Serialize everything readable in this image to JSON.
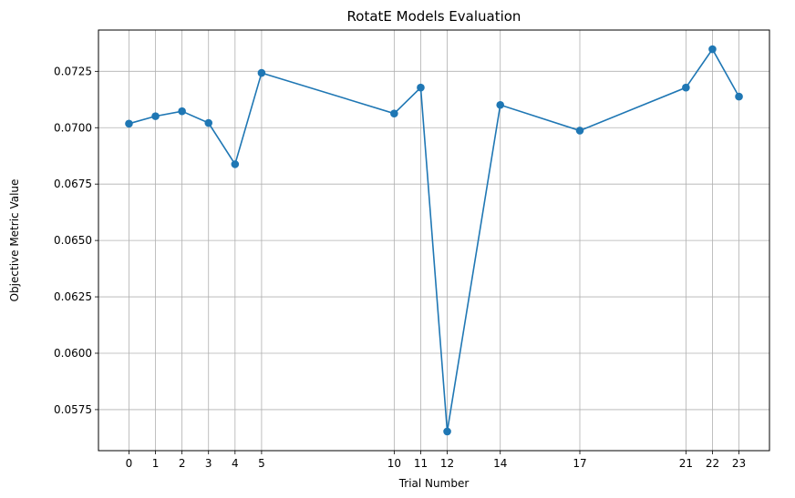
{
  "chart_data": {
    "type": "line",
    "title": "RotatE Models Evaluation",
    "xlabel": "Trial Number",
    "ylabel": "Objective Metric Value",
    "x": [
      0,
      1,
      2,
      3,
      4,
      5,
      10,
      11,
      12,
      14,
      17,
      21,
      22,
      23
    ],
    "y": [
      0.07018,
      0.07051,
      0.07073,
      0.07021,
      0.06838,
      0.07243,
      0.07063,
      0.07178,
      0.05653,
      0.07101,
      0.06987,
      0.07178,
      0.07348,
      0.07138
    ],
    "xticks": [
      0,
      1,
      2,
      3,
      4,
      5,
      10,
      11,
      12,
      14,
      17,
      21,
      22,
      23
    ],
    "yticks": [
      "0.0575",
      "0.0600",
      "0.0625",
      "0.0650",
      "0.0675",
      "0.0700",
      "0.0725"
    ],
    "xlim": [
      -1.15,
      24.15
    ],
    "ylim": [
      0.05568,
      0.07433
    ],
    "grid": true,
    "color": "#1f77b4",
    "marker": "circle"
  }
}
